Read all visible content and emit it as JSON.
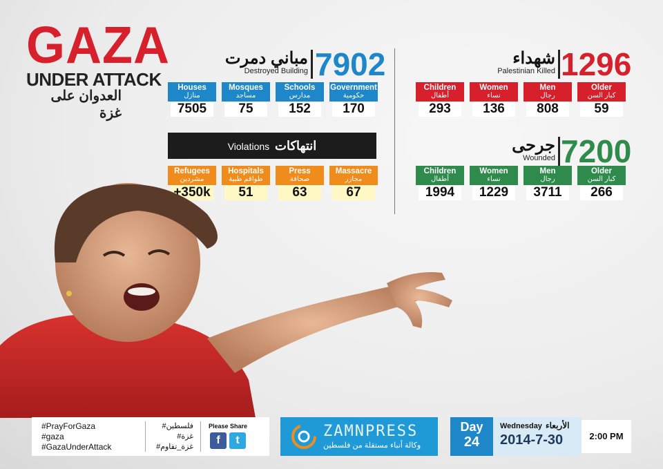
{
  "title": {
    "main": "GAZA",
    "sub": "UNDER ATTACK",
    "arabic": "العدوان على غزة"
  },
  "buildings": {
    "total": "7902",
    "label_ar": "مباني دمرت",
    "label_en": "Destroyed Building",
    "items": [
      {
        "en": "Houses",
        "ar": "منازل",
        "value": "7505"
      },
      {
        "en": "Mosques",
        "ar": "مساجد",
        "value": "75"
      },
      {
        "en": "Schools",
        "ar": "مدارس",
        "value": "152"
      },
      {
        "en": "Government",
        "ar": "حكومية",
        "value": "170"
      }
    ]
  },
  "violations": {
    "label_en": "Violations",
    "label_ar": "انتهاكات",
    "items": [
      {
        "en": "Refugees",
        "ar": "مشردين",
        "value": "+350k"
      },
      {
        "en": "Hospitals",
        "ar": "طواقم طبية",
        "value": "51"
      },
      {
        "en": "Press",
        "ar": "صحافة",
        "value": "63"
      },
      {
        "en": "Massacre",
        "ar": "مجازر",
        "value": "67"
      }
    ]
  },
  "killed": {
    "total": "1296",
    "label_ar": "شهداء",
    "label_en": "Palestinian Killed",
    "items": [
      {
        "en": "Children",
        "ar": "أطفال",
        "value": "293"
      },
      {
        "en": "Women",
        "ar": "نساء",
        "value": "136"
      },
      {
        "en": "Men",
        "ar": "رجال",
        "value": "808"
      },
      {
        "en": "Older",
        "ar": "كبار السن",
        "value": "59"
      }
    ]
  },
  "wounded": {
    "total": "7200",
    "label_ar": "جرحى",
    "label_en": "Wounded",
    "items": [
      {
        "en": "Children",
        "ar": "أطفال",
        "value": "1994"
      },
      {
        "en": "Women",
        "ar": "نساء",
        "value": "1229"
      },
      {
        "en": "Men",
        "ar": "رجال",
        "value": "3711"
      },
      {
        "en": "Older",
        "ar": "كبار السن",
        "value": "266"
      }
    ]
  },
  "footer": {
    "hashtags_en": [
      "#PrayForGaza",
      "#gaza",
      "#GazaUnderAttack"
    ],
    "hashtags_ar": [
      "#فلسطين",
      "#غزة",
      "#غزة_تقاوم"
    ],
    "share_label": "Please Share",
    "facebook_icon": "facebook-icon",
    "twitter_icon": "twitter-icon",
    "brand_name": "ZAMNPRESS",
    "brand_tagline": "وكالة أنباء مستقلة من فلسطين",
    "day_label": "Day",
    "day_number": "24",
    "weekday_en": "Wednesday",
    "weekday_ar": "الأربعاء",
    "date": "2014-7-30",
    "time": "2:00 PM"
  },
  "colors": {
    "blue": "#1d87c9",
    "red": "#d6202c",
    "green": "#2e8b4c",
    "orange": "#f08c1c"
  }
}
